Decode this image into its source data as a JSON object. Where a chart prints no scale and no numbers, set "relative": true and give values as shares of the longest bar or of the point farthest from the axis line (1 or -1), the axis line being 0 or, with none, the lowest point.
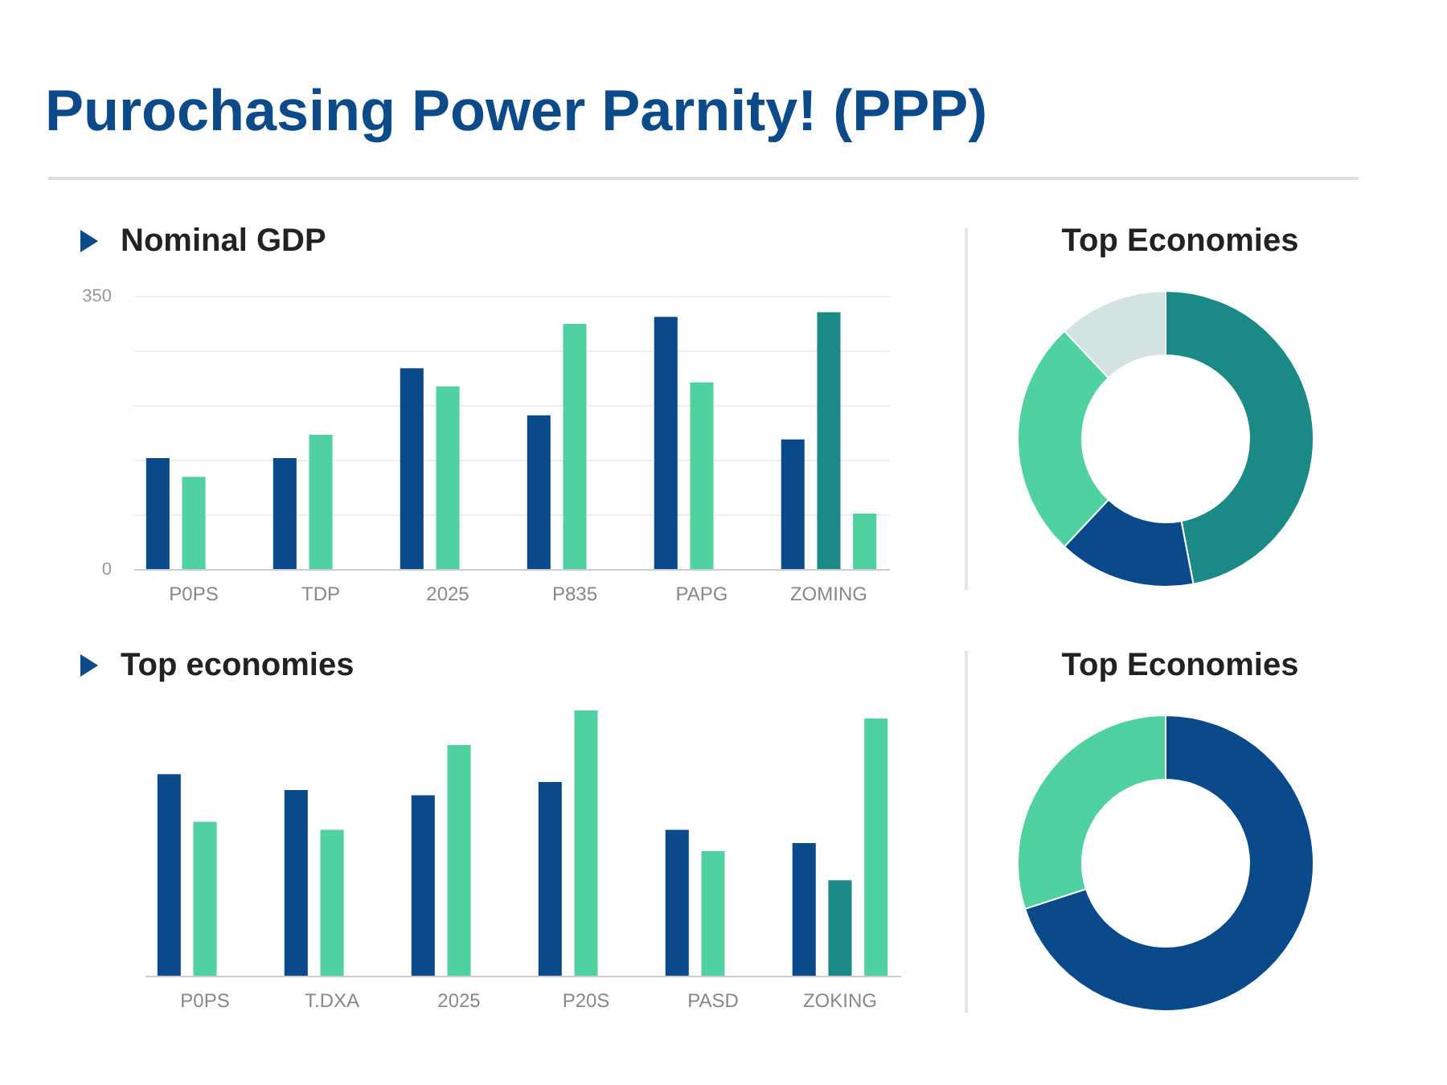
{
  "chart_data": [
    {
      "type": "bar",
      "title": "Purochasing Power Parnity! (PPP)",
      "subtitle": "Nominal GDP",
      "categories": [
        "P0PS",
        "TDP",
        "2025",
        "P835",
        "PAPG",
        "ZOMING"
      ],
      "series": [
        {
          "color": "#0a4a8a",
          "values": [
            142,
            142,
            257,
            197,
            323,
            166
          ]
        },
        {
          "colors": [
            "#4fd1a0",
            "#4fd1a0",
            "#4fd1a0",
            "#4fd1a0",
            "#4fd1a0",
            "#1b8a86"
          ],
          "values": [
            118,
            172,
            234,
            314,
            239,
            329
          ]
        },
        {
          "color": "#4fd1a0",
          "values": [
            null,
            null,
            null,
            null,
            null,
            71
          ]
        }
      ],
      "ylim": [
        0,
        350
      ],
      "yticks": [
        0,
        {
          "value": 70,
          "label": null
        },
        {
          "value": 140,
          "label": null
        },
        {
          "value": 210,
          "label": null
        },
        {
          "value": 280,
          "label": null
        },
        350
      ],
      "grid": "y"
    },
    {
      "type": "donut",
      "title": "Top Economies",
      "categories": [
        null,
        null,
        null,
        null
      ],
      "values": [
        47,
        15,
        26,
        12
      ],
      "colors": [
        "#1b8a86",
        "#0a4a8a",
        "#4fd1a0",
        "#d3e3e3"
      ]
    },
    {
      "type": "bar",
      "title": "Top economies",
      "categories": [
        "P0PS",
        "T.DXA",
        "2025",
        "P20S",
        "PASD",
        "ZOKING"
      ],
      "series": [
        {
          "color": "#0a4a8a",
          "values": [
            0.76,
            0.7,
            0.68,
            0.73,
            0.55,
            0.5
          ]
        },
        {
          "colors": [
            "#4fd1a0",
            "#4fd1a0",
            "#4fd1a0",
            "#4fd1a0",
            "#4fd1a0",
            "#1b8a86"
          ],
          "values": [
            0.58,
            0.55,
            0.87,
            1,
            0.47,
            0.36
          ]
        },
        {
          "color": "#4fd1a0",
          "values": [
            null,
            null,
            null,
            null,
            null,
            0.97
          ]
        }
      ],
      "relative": true
    },
    {
      "type": "donut",
      "title": "Top Economies",
      "categories": [
        null,
        null
      ],
      "values": [
        70,
        30
      ],
      "colors": [
        "#0a4a8a",
        "#4fd1a0"
      ]
    }
  ]
}
